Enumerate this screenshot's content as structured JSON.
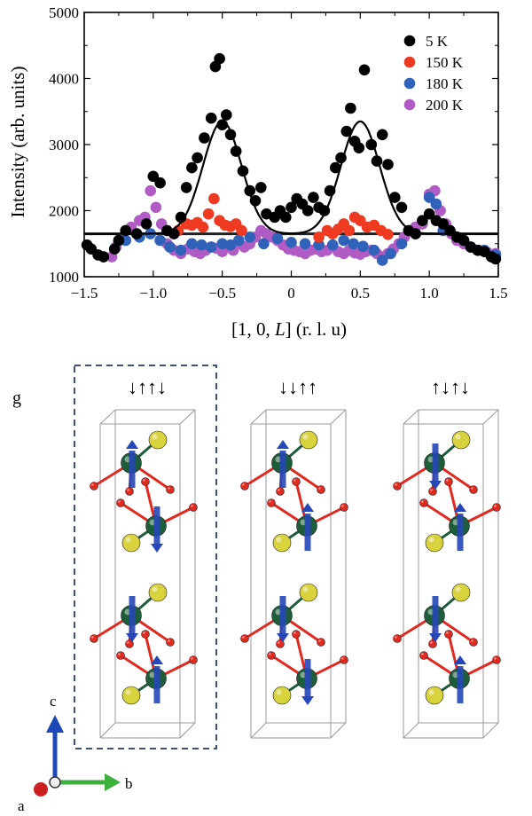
{
  "chart_data": {
    "type": "scatter",
    "xlabel_prefix": "[1, 0, ",
    "xlabel_var": "L",
    "xlabel_suffix": "] (r. l. u)",
    "ylabel": "Intensity (arb. units)",
    "xlim": [
      -1.5,
      1.5
    ],
    "ylim": [
      1000,
      5000
    ],
    "x_ticks": [
      -1.5,
      -1.0,
      -0.5,
      0,
      0.5,
      1.0,
      1.5
    ],
    "x_tick_labels": [
      "−1.5",
      "−1.0",
      "−0.5",
      "0",
      "0.5",
      "1.0",
      "1.5"
    ],
    "y_ticks": [
      1000,
      2000,
      3000,
      4000,
      5000
    ],
    "y_tick_labels": [
      "1000",
      "2000",
      "3000",
      "4000",
      "5000"
    ],
    "legend": [
      "5 K",
      "150 K",
      "180 K",
      "200 K"
    ],
    "colors": {
      "5 K": "#000000",
      "150 K": "#ee3a20",
      "180 K": "#2f62b8",
      "200 K": "#b05cc4",
      "fit": "#000000"
    },
    "baseline": 1650,
    "fit": {
      "type": "double-gaussian",
      "centers": [
        -0.5,
        0.5
      ],
      "amplitude": 1700,
      "sigma": 0.14
    },
    "series": [
      {
        "name": "5 K",
        "points": [
          [
            -1.48,
            1480
          ],
          [
            -1.45,
            1420
          ],
          [
            -1.4,
            1330
          ],
          [
            -1.36,
            1300
          ],
          [
            -1.28,
            1420
          ],
          [
            -1.25,
            1550
          ],
          [
            -1.2,
            1700
          ],
          [
            -1.12,
            1650
          ],
          [
            -1.05,
            1800
          ],
          [
            -1.0,
            2520
          ],
          [
            -0.95,
            2420
          ],
          [
            -0.9,
            1700
          ],
          [
            -0.85,
            1650
          ],
          [
            -0.8,
            1900
          ],
          [
            -0.76,
            2350
          ],
          [
            -0.72,
            2650
          ],
          [
            -0.68,
            2800
          ],
          [
            -0.63,
            3100
          ],
          [
            -0.58,
            3400
          ],
          [
            -0.55,
            4180
          ],
          [
            -0.52,
            4300
          ],
          [
            -0.5,
            3300
          ],
          [
            -0.47,
            3450
          ],
          [
            -0.44,
            3150
          ],
          [
            -0.4,
            2900
          ],
          [
            -0.35,
            2600
          ],
          [
            -0.3,
            2300
          ],
          [
            -0.26,
            2150
          ],
          [
            -0.22,
            2350
          ],
          [
            -0.18,
            1950
          ],
          [
            -0.12,
            1900
          ],
          [
            -0.08,
            2000
          ],
          [
            -0.04,
            1900
          ],
          [
            0.0,
            2050
          ],
          [
            0.04,
            2180
          ],
          [
            0.08,
            2100
          ],
          [
            0.12,
            2000
          ],
          [
            0.16,
            2200
          ],
          [
            0.2,
            2050
          ],
          [
            0.24,
            2000
          ],
          [
            0.28,
            2300
          ],
          [
            0.32,
            2650
          ],
          [
            0.36,
            2800
          ],
          [
            0.4,
            3200
          ],
          [
            0.43,
            3550
          ],
          [
            0.46,
            3050
          ],
          [
            0.49,
            2950
          ],
          [
            0.53,
            4130
          ],
          [
            0.58,
            3000
          ],
          [
            0.62,
            2750
          ],
          [
            0.66,
            3150
          ],
          [
            0.7,
            2700
          ],
          [
            0.75,
            2200
          ],
          [
            0.8,
            2050
          ],
          [
            0.85,
            1700
          ],
          [
            0.9,
            1650
          ],
          [
            0.95,
            1850
          ],
          [
            1.0,
            1950
          ],
          [
            1.05,
            1850
          ],
          [
            1.1,
            1800
          ],
          [
            1.15,
            1700
          ],
          [
            1.2,
            1600
          ],
          [
            1.25,
            1550
          ],
          [
            1.3,
            1450
          ],
          [
            1.35,
            1400
          ],
          [
            1.4,
            1380
          ],
          [
            1.45,
            1300
          ],
          [
            1.48,
            1270
          ]
        ]
      },
      {
        "name": "150 K",
        "points": [
          [
            -0.82,
            1700
          ],
          [
            -0.76,
            1800
          ],
          [
            -0.72,
            1780
          ],
          [
            -0.68,
            1820
          ],
          [
            -0.64,
            1750
          ],
          [
            -0.6,
            1950
          ],
          [
            -0.56,
            2180
          ],
          [
            -0.52,
            1850
          ],
          [
            -0.48,
            1780
          ],
          [
            -0.44,
            1760
          ],
          [
            -0.4,
            1800
          ],
          [
            -0.36,
            1700
          ],
          [
            0.2,
            1600
          ],
          [
            0.26,
            1700
          ],
          [
            0.3,
            1650
          ],
          [
            0.34,
            1720
          ],
          [
            0.38,
            1800
          ],
          [
            0.42,
            1700
          ],
          [
            0.46,
            1900
          ],
          [
            0.5,
            1850
          ],
          [
            0.55,
            1750
          ],
          [
            0.6,
            1780
          ],
          [
            0.65,
            1700
          ],
          [
            0.7,
            1640
          ]
        ]
      },
      {
        "name": "180 K",
        "points": [
          [
            -1.2,
            1550
          ],
          [
            -1.1,
            1600
          ],
          [
            -1.02,
            1650
          ],
          [
            -0.95,
            1550
          ],
          [
            -0.88,
            1450
          ],
          [
            -0.8,
            1400
          ],
          [
            -0.72,
            1500
          ],
          [
            -0.65,
            1480
          ],
          [
            -0.58,
            1450
          ],
          [
            -0.5,
            1500
          ],
          [
            -0.44,
            1480
          ],
          [
            -0.38,
            1550
          ],
          [
            -0.3,
            1600
          ],
          [
            -0.2,
            1500
          ],
          [
            -0.1,
            1580
          ],
          [
            0.0,
            1520
          ],
          [
            0.1,
            1500
          ],
          [
            0.2,
            1480
          ],
          [
            0.3,
            1480
          ],
          [
            0.38,
            1550
          ],
          [
            0.45,
            1500
          ],
          [
            0.52,
            1460
          ],
          [
            0.6,
            1400
          ],
          [
            0.66,
            1250
          ],
          [
            0.72,
            1350
          ],
          [
            0.8,
            1500
          ],
          [
            0.9,
            1650
          ],
          [
            1.0,
            2200
          ],
          [
            1.05,
            2100
          ],
          [
            1.1,
            1700
          ],
          [
            1.2,
            1600
          ],
          [
            1.3,
            1450
          ],
          [
            1.4,
            1400
          ],
          [
            1.48,
            1330
          ]
        ]
      },
      {
        "name": "200 K",
        "points": [
          [
            -1.3,
            1300
          ],
          [
            -1.27,
            1450
          ],
          [
            -1.22,
            1600
          ],
          [
            -1.16,
            1750
          ],
          [
            -1.1,
            1850
          ],
          [
            -1.06,
            1900
          ],
          [
            -1.02,
            2300
          ],
          [
            -0.98,
            2050
          ],
          [
            -0.94,
            1800
          ],
          [
            -0.9,
            1500
          ],
          [
            -0.85,
            1400
          ],
          [
            -0.8,
            1350
          ],
          [
            -0.75,
            1420
          ],
          [
            -0.7,
            1380
          ],
          [
            -0.66,
            1350
          ],
          [
            -0.62,
            1400
          ],
          [
            -0.58,
            1450
          ],
          [
            -0.54,
            1430
          ],
          [
            -0.5,
            1380
          ],
          [
            -0.46,
            1450
          ],
          [
            -0.42,
            1400
          ],
          [
            -0.38,
            1500
          ],
          [
            -0.34,
            1450
          ],
          [
            -0.3,
            1500
          ],
          [
            -0.26,
            1600
          ],
          [
            -0.22,
            1700
          ],
          [
            -0.18,
            1650
          ],
          [
            -0.14,
            1600
          ],
          [
            -0.1,
            1550
          ],
          [
            -0.06,
            1480
          ],
          [
            -0.02,
            1420
          ],
          [
            0.02,
            1400
          ],
          [
            0.06,
            1380
          ],
          [
            0.1,
            1350
          ],
          [
            0.14,
            1400
          ],
          [
            0.18,
            1420
          ],
          [
            0.22,
            1380
          ],
          [
            0.26,
            1400
          ],
          [
            0.3,
            1450
          ],
          [
            0.34,
            1380
          ],
          [
            0.38,
            1350
          ],
          [
            0.42,
            1400
          ],
          [
            0.46,
            1360
          ],
          [
            0.5,
            1340
          ],
          [
            0.54,
            1380
          ],
          [
            0.58,
            1400
          ],
          [
            0.62,
            1350
          ],
          [
            0.66,
            1300
          ],
          [
            0.7,
            1350
          ],
          [
            0.74,
            1420
          ],
          [
            0.78,
            1500
          ],
          [
            0.82,
            1600
          ],
          [
            0.86,
            1700
          ],
          [
            0.9,
            1750
          ],
          [
            0.95,
            1800
          ],
          [
            1.0,
            2250
          ],
          [
            1.04,
            2300
          ],
          [
            1.08,
            2000
          ],
          [
            1.12,
            1800
          ],
          [
            1.16,
            1650
          ],
          [
            1.2,
            1550
          ],
          [
            1.25,
            1500
          ],
          [
            1.3,
            1450
          ],
          [
            1.36,
            1400
          ],
          [
            1.42,
            1370
          ],
          [
            1.48,
            1350
          ]
        ]
      }
    ]
  },
  "structure_panel": {
    "label": "g",
    "configs": [
      "↓↑↑↓",
      "↓↓↑↑",
      "↑↓↑↓"
    ],
    "spins": [
      [
        -1,
        1,
        1,
        -1
      ],
      [
        -1,
        -1,
        1,
        1
      ],
      [
        1,
        -1,
        1,
        -1
      ]
    ],
    "highlighted": 0,
    "axes": {
      "c": "c",
      "b": "b",
      "a": "a"
    },
    "colors": {
      "frame": "#9a9a9a",
      "dash_box": "#3c4f7c",
      "green": "#1e5d3a",
      "yellow": "#d8d23c",
      "red": "#e02a20",
      "blue": "#2547b8",
      "c_axis": "#1d49b8",
      "b_axis": "#3db03d",
      "a_axis": "#cc2020"
    }
  }
}
